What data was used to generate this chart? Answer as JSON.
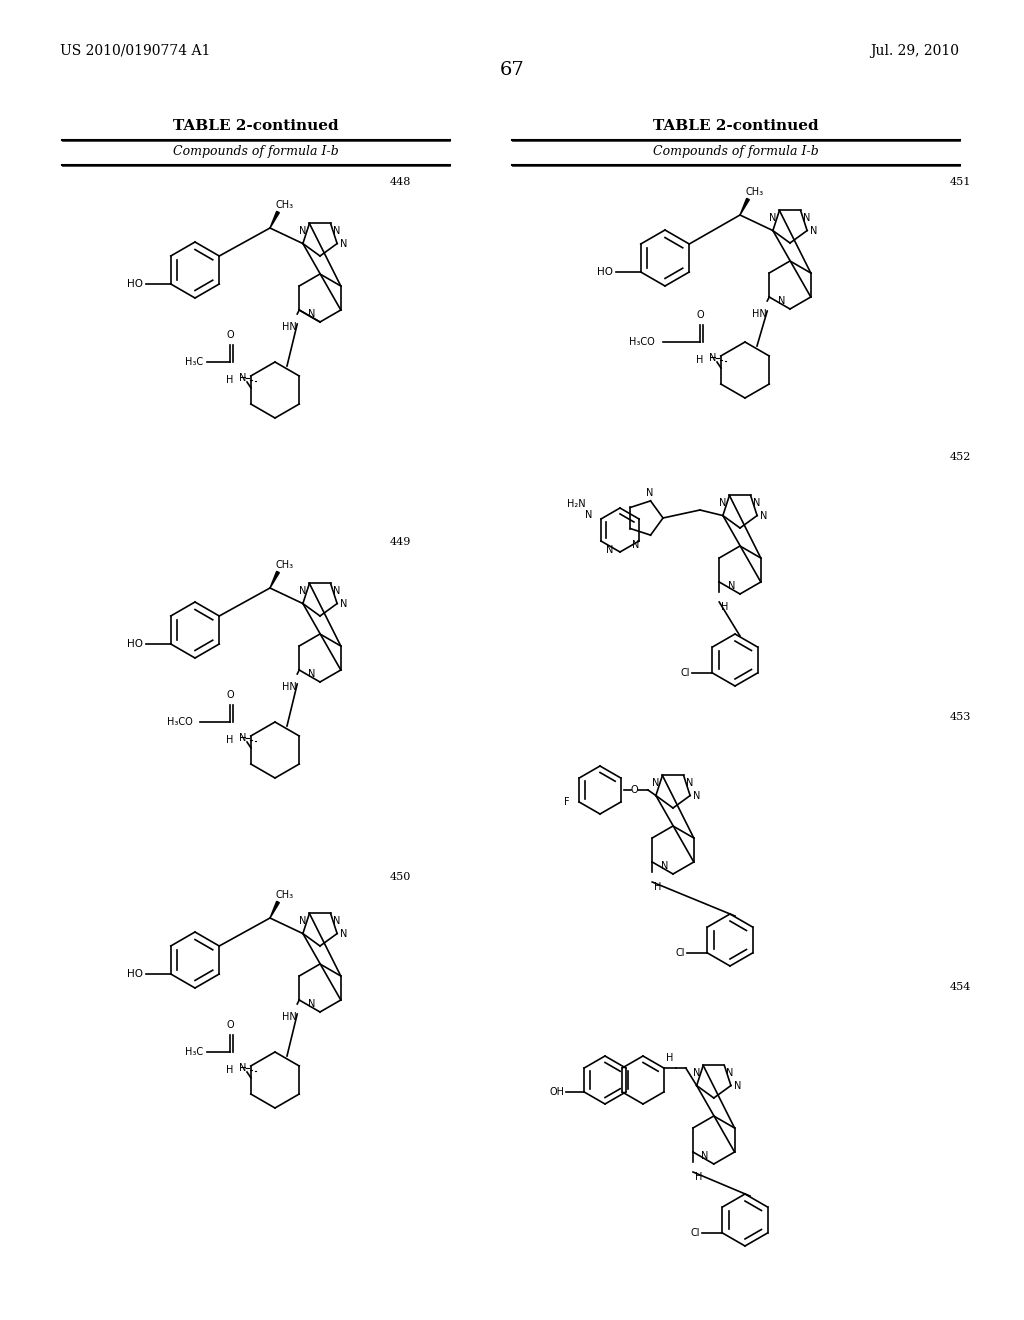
{
  "page_number": "67",
  "patent_number": "US 2010/0190774 A1",
  "patent_date": "Jul. 29, 2010",
  "table_title": "TABLE 2-continued",
  "table_subtitle": "Compounds of formula I-b",
  "background_color": "#ffffff",
  "text_color": "#000000",
  "compound_numbers": [
    "448",
    "449",
    "450",
    "451",
    "452",
    "453",
    "454"
  ],
  "font_size_header": 11,
  "font_size_body": 9,
  "font_size_page": 10
}
